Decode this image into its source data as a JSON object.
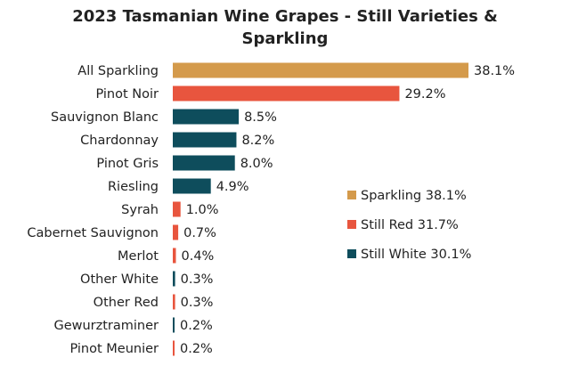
{
  "chart_data": {
    "type": "bar",
    "orientation": "horizontal",
    "title": "2023 Tasmanian Wine Grapes - Still Varieties & Sparkling",
    "xlabel": "",
    "ylabel": "",
    "xlim": [
      0,
      38.1
    ],
    "grid": false,
    "legend_position": "right",
    "value_suffix": "%",
    "categories": [
      "All Sparkling",
      "Pinot Noir",
      "Sauvignon Blanc",
      "Chardonnay",
      "Pinot Gris",
      "Riesling",
      "Syrah",
      "Cabernet Sauvignon",
      "Merlot",
      "Other White",
      "Other Red",
      "Gewurztraminer",
      "Pinot Meunier"
    ],
    "values": [
      38.1,
      29.2,
      8.5,
      8.2,
      8.0,
      4.9,
      1.0,
      0.7,
      0.4,
      0.3,
      0.3,
      0.2,
      0.2
    ],
    "value_labels": [
      "38.1%",
      "29.2%",
      "8.5%",
      "8.2%",
      "8.0%",
      "4.9%",
      "1.0%",
      "0.7%",
      "0.4%",
      "0.3%",
      "0.3%",
      "0.2%",
      "0.2%"
    ],
    "bar_groups": [
      "sparkling",
      "red",
      "white",
      "white",
      "white",
      "white",
      "red",
      "red",
      "red",
      "white",
      "red",
      "white",
      "red"
    ],
    "groups": [
      {
        "key": "sparkling",
        "name": "Sparkling 38.1%",
        "color": "#D49A4B"
      },
      {
        "key": "red",
        "name": "Still Red 31.7%",
        "color": "#E8553E"
      },
      {
        "key": "white",
        "name": "Still White 30.1%",
        "color": "#0E4D5C"
      }
    ]
  }
}
